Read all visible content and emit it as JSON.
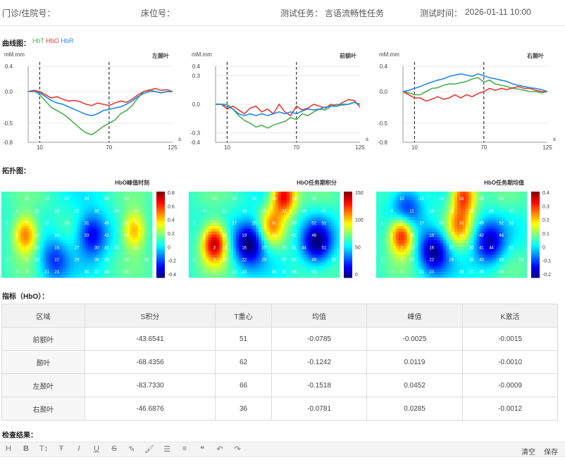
{
  "header": {
    "clinic_id_label": "门诊/住院号：",
    "bed_label": "床位号：",
    "task_label": "测试任务：",
    "task_value": "言语流畅性任务",
    "time_label": "测试时间：",
    "time_value": "2026-01-11 10:00"
  },
  "curves": {
    "section_title": "曲线图：",
    "legend": [
      {
        "name": "HbT",
        "color": "#4caf50"
      },
      {
        "name": "HbO",
        "color": "#e53935"
      },
      {
        "name": "HbR",
        "color": "#1e88e5"
      }
    ],
    "y_unit": "mM.mm",
    "x_unit": "s"
  },
  "chart_data": [
    {
      "type": "line",
      "title": "左颞叶",
      "ylabel": "mM.mm",
      "xlabel": "s",
      "ylim": [
        -0.8,
        0.4
      ],
      "yticks": [
        0.4,
        0.0,
        -0.5,
        -0.8
      ],
      "xticks": [
        10,
        70,
        125
      ],
      "xlim": [
        0,
        125
      ],
      "markers": [
        10,
        70
      ],
      "x": [
        0,
        5,
        10,
        15,
        20,
        25,
        30,
        35,
        40,
        45,
        50,
        55,
        60,
        65,
        70,
        75,
        80,
        85,
        90,
        95,
        100,
        105,
        110,
        115,
        120,
        125
      ],
      "series": [
        {
          "name": "HbT",
          "color": "#4caf50",
          "values": [
            0.0,
            0.02,
            -0.05,
            -0.15,
            -0.25,
            -0.3,
            -0.35,
            -0.42,
            -0.5,
            -0.58,
            -0.65,
            -0.68,
            -0.62,
            -0.55,
            -0.5,
            -0.45,
            -0.35,
            -0.3,
            -0.22,
            -0.1,
            0.0,
            0.03,
            0.0,
            -0.02,
            0.0,
            0.0
          ]
        },
        {
          "name": "HbO",
          "color": "#e53935",
          "values": [
            0.0,
            0.02,
            0.0,
            -0.05,
            -0.1,
            -0.08,
            -0.12,
            -0.15,
            -0.14,
            -0.16,
            -0.2,
            -0.22,
            -0.18,
            -0.2,
            -0.22,
            -0.18,
            -0.15,
            -0.17,
            -0.12,
            -0.05,
            0.0,
            0.02,
            0.05,
            0.02,
            0.03,
            0.0
          ]
        },
        {
          "name": "HbR",
          "color": "#1e88e5",
          "values": [
            0.0,
            0.0,
            -0.02,
            -0.08,
            -0.14,
            -0.18,
            -0.2,
            -0.24,
            -0.28,
            -0.32,
            -0.36,
            -0.38,
            -0.35,
            -0.3,
            -0.28,
            -0.26,
            -0.24,
            -0.2,
            -0.15,
            -0.08,
            -0.03,
            0.0,
            0.0,
            -0.02,
            0.0,
            0.0
          ]
        }
      ]
    },
    {
      "type": "line",
      "title": "前额叶",
      "ylabel": "mM.mm",
      "xlabel": "s",
      "ylim": [
        -0.4,
        0.4
      ],
      "yticks": [
        0.4,
        0.3,
        0.0,
        -0.3,
        -0.4
      ],
      "xticks": [
        10,
        70,
        125
      ],
      "xlim": [
        0,
        125
      ],
      "markers": [
        10,
        70
      ],
      "x": [
        0,
        5,
        10,
        15,
        20,
        25,
        30,
        35,
        40,
        45,
        50,
        55,
        60,
        65,
        70,
        75,
        80,
        85,
        90,
        95,
        100,
        105,
        110,
        115,
        120,
        125
      ],
      "series": [
        {
          "name": "HbT",
          "color": "#4caf50",
          "values": [
            0.0,
            0.0,
            0.0,
            -0.05,
            -0.12,
            -0.17,
            -0.2,
            -0.24,
            -0.22,
            -0.25,
            -0.22,
            -0.2,
            -0.18,
            -0.14,
            -0.16,
            -0.1,
            -0.12,
            -0.08,
            -0.05,
            -0.06,
            -0.02,
            0.0,
            -0.01,
            0.0,
            0.02,
            0.0
          ]
        },
        {
          "name": "HbO",
          "color": "#e53935",
          "values": [
            0.0,
            0.0,
            -0.05,
            -0.02,
            -0.06,
            -0.1,
            -0.04,
            -0.02,
            -0.08,
            -0.05,
            -0.1,
            0.0,
            -0.08,
            -0.12,
            -0.02,
            -0.06,
            -0.04,
            0.0,
            -0.02,
            -0.04,
            0.0,
            -0.02,
            0.02,
            0.05,
            0.04,
            -0.03
          ]
        },
        {
          "name": "HbR",
          "color": "#1e88e5",
          "values": [
            0.0,
            0.0,
            -0.02,
            -0.05,
            -0.1,
            -0.12,
            -0.1,
            -0.12,
            -0.1,
            -0.12,
            -0.1,
            -0.08,
            -0.1,
            -0.08,
            -0.1,
            -0.07,
            -0.05,
            -0.06,
            -0.05,
            -0.03,
            -0.02,
            -0.02,
            0.0,
            0.0,
            0.02,
            0.0
          ]
        }
      ]
    },
    {
      "type": "line",
      "title": "右颞叶",
      "ylabel": "mM.mm",
      "xlabel": "s",
      "ylim": [
        -0.8,
        0.4
      ],
      "yticks": [
        0.4,
        0.0,
        -0.5,
        -0.8
      ],
      "xticks": [
        10,
        70,
        125
      ],
      "xlim": [
        0,
        125
      ],
      "markers": [
        10,
        70
      ],
      "x": [
        0,
        5,
        10,
        15,
        20,
        25,
        30,
        35,
        40,
        45,
        50,
        55,
        60,
        65,
        70,
        75,
        80,
        85,
        90,
        95,
        100,
        105,
        110,
        115,
        120,
        125
      ],
      "series": [
        {
          "name": "HbT",
          "color": "#4caf50",
          "values": [
            0.0,
            -0.02,
            -0.05,
            -0.05,
            0.0,
            0.05,
            0.06,
            0.1,
            0.12,
            0.12,
            0.14,
            0.16,
            0.2,
            0.22,
            0.15,
            0.18,
            0.12,
            0.1,
            0.08,
            0.05,
            0.04,
            0.02,
            0.0,
            0.0,
            -0.02,
            0.0
          ]
        },
        {
          "name": "HbO",
          "color": "#e53935",
          "values": [
            0.0,
            -0.05,
            -0.1,
            -0.1,
            -0.15,
            -0.12,
            -0.08,
            -0.12,
            -0.1,
            -0.05,
            -0.1,
            -0.05,
            -0.08,
            -0.03,
            0.0,
            0.05,
            0.02,
            0.05,
            0.03,
            0.06,
            0.08,
            0.05,
            0.05,
            0.02,
            0.0,
            0.0
          ]
        },
        {
          "name": "HbR",
          "color": "#1e88e5",
          "values": [
            0.0,
            0.02,
            0.05,
            0.08,
            0.12,
            0.15,
            0.18,
            0.2,
            0.24,
            0.26,
            0.28,
            0.26,
            0.24,
            0.28,
            0.25,
            0.22,
            0.2,
            0.18,
            0.16,
            0.12,
            0.1,
            0.08,
            0.06,
            0.05,
            0.03,
            0.0
          ]
        }
      ]
    }
  ],
  "topo": {
    "section_title": "拓扑图：",
    "maps": [
      {
        "title": "HbO峰值时刻",
        "scale": [
          "0.8",
          "0.6",
          "0.4",
          "0.2",
          "0",
          "-0.2",
          "-0.4"
        ],
        "hot": [
          [
            0.16,
            0.5,
            0.7
          ],
          [
            0.88,
            0.45,
            0.6
          ]
        ],
        "cold": [
          [
            0.6,
            0.5,
            0.7
          ],
          [
            0.35,
            0.8,
            0.5
          ]
        ]
      },
      {
        "title": "HbO任务期积分",
        "scale": [
          "150",
          "100",
          "50",
          "0"
        ],
        "hot": [
          [
            0.17,
            0.6,
            1.0
          ],
          [
            0.63,
            0.05,
            0.9
          ],
          [
            0.55,
            0.4,
            0.5
          ]
        ],
        "cold": [
          [
            0.4,
            0.6,
            0.9
          ],
          [
            0.85,
            0.6,
            0.8
          ]
        ]
      },
      {
        "title": "HbO任务期均值",
        "scale": [
          "0.4",
          "0.3",
          "0.2",
          "0.1",
          "0",
          "-0.1",
          "-0.2"
        ],
        "hot": [
          [
            0.17,
            0.5,
            0.95
          ],
          [
            0.58,
            0.05,
            0.8
          ],
          [
            0.55,
            0.4,
            0.5
          ]
        ],
        "cold": [
          [
            0.2,
            0.2,
            0.6
          ],
          [
            0.38,
            0.7,
            0.8
          ],
          [
            0.75,
            0.6,
            0.7
          ]
        ]
      }
    ],
    "channels": [
      {
        "n": "10",
        "col": 2,
        "row": 0
      },
      {
        "n": "13",
        "col": 4,
        "row": 0
      },
      {
        "n": "24",
        "col": 6,
        "row": 0
      },
      {
        "n": "28",
        "col": 8,
        "row": 0
      },
      {
        "n": "38",
        "col": 10,
        "row": 0
      },
      {
        "n": "40",
        "col": 12,
        "row": 0
      },
      {
        "n": "4",
        "col": 1,
        "row": 1
      },
      {
        "n": "11",
        "col": 3,
        "row": 1
      },
      {
        "n": "18",
        "col": 5,
        "row": 1
      },
      {
        "n": "25",
        "col": 7,
        "row": 1
      },
      {
        "n": "32",
        "col": 9,
        "row": 1
      },
      {
        "n": "39",
        "col": 11,
        "row": 1
      },
      {
        "n": "47",
        "col": 13,
        "row": 1
      },
      {
        "n": "1",
        "col": 0,
        "row": 2
      },
      {
        "n": "5",
        "col": 2,
        "row": 2
      },
      {
        "n": "17",
        "col": 4,
        "row": 2
      },
      {
        "n": "20",
        "col": 6,
        "row": 2
      },
      {
        "n": "31",
        "col": 8,
        "row": 2
      },
      {
        "n": "45",
        "col": 10,
        "row": 2
      },
      {
        "n": "52",
        "col": 12,
        "row": 2
      },
      {
        "n": "51",
        "col": 13,
        "row": 2
      },
      {
        "n": "6",
        "col": 1,
        "row": 3
      },
      {
        "n": "14",
        "col": 3,
        "row": 3
      },
      {
        "n": "19",
        "col": 5,
        "row": 3
      },
      {
        "n": "33",
        "col": 8,
        "row": 3
      },
      {
        "n": "42",
        "col": 10,
        "row": 3
      },
      {
        "n": "46",
        "col": 12,
        "row": 3
      },
      {
        "n": "3",
        "col": 2,
        "row": 4
      },
      {
        "n": "13",
        "col": 3,
        "row": 4
      },
      {
        "n": "16",
        "col": 5,
        "row": 4
      },
      {
        "n": "27",
        "col": 7,
        "row": 4
      },
      {
        "n": "30",
        "col": 9,
        "row": 4
      },
      {
        "n": "41",
        "col": 10,
        "row": 4
      },
      {
        "n": "44",
        "col": 11,
        "row": 4
      },
      {
        "n": "51",
        "col": 13,
        "row": 4
      },
      {
        "n": "2",
        "col": 0,
        "row": 5
      },
      {
        "n": "8",
        "col": 2,
        "row": 5
      },
      {
        "n": "15",
        "col": 3,
        "row": 5
      },
      {
        "n": "22",
        "col": 5,
        "row": 5
      },
      {
        "n": "29",
        "col": 7,
        "row": 5
      },
      {
        "n": "36",
        "col": 9,
        "row": 5
      },
      {
        "n": "43",
        "col": 10,
        "row": 5
      },
      {
        "n": "49",
        "col": 12,
        "row": 5
      },
      {
        "n": "53",
        "col": 14,
        "row": 5
      },
      {
        "n": "7",
        "col": 1,
        "row": 6
      },
      {
        "n": "9",
        "col": 2,
        "row": 6
      },
      {
        "n": "21",
        "col": 4,
        "row": 6
      },
      {
        "n": "23",
        "col": 5,
        "row": 6
      },
      {
        "n": "35",
        "col": 8,
        "row": 6
      },
      {
        "n": "37",
        "col": 9,
        "row": 6
      },
      {
        "n": "48",
        "col": 10,
        "row": 6
      },
      {
        "n": "50",
        "col": 12,
        "row": 6
      }
    ]
  },
  "metrics": {
    "section_title": "指标（HbO）：",
    "columns": [
      "区域",
      "S积分",
      "T重心",
      "均值",
      "峰值",
      "K激活"
    ],
    "rows": [
      [
        "前额叶",
        "-43.6541",
        "51",
        "-0.0785",
        "-0.0025",
        "-0.0015"
      ],
      [
        "颞叶",
        "-68.4356",
        "62",
        "-0.1242",
        "0.0119",
        "-0.0010"
      ],
      [
        "左颞叶",
        "-83.7330",
        "66",
        "-0.1518",
        "0.0452",
        "-0.0009"
      ],
      [
        "右颞叶",
        "-46.6876",
        "36",
        "-0.0781",
        "0.0285",
        "-0.0012"
      ]
    ]
  },
  "result": {
    "section_title": "检查结果：",
    "toolbar": [
      {
        "name": "heading-icon",
        "glyph": "H"
      },
      {
        "name": "bold-icon",
        "glyph": "B"
      },
      {
        "name": "text-size-icon",
        "glyph": "T↕"
      },
      {
        "name": "font-icon",
        "glyph": "Ŧ"
      },
      {
        "name": "italic-icon",
        "glyph": "I"
      },
      {
        "name": "underline-icon",
        "glyph": "U"
      },
      {
        "name": "strikethrough-icon",
        "glyph": "S"
      },
      {
        "name": "highlight-icon",
        "glyph": "✎"
      },
      {
        "name": "brush-icon",
        "glyph": "🖌"
      },
      {
        "name": "bullet-list-icon",
        "glyph": "☰"
      },
      {
        "name": "align-icon",
        "glyph": "≡"
      },
      {
        "name": "quote-icon",
        "glyph": "❝"
      },
      {
        "name": "undo-icon",
        "glyph": "↶"
      },
      {
        "name": "redo-icon",
        "glyph": "↷"
      }
    ],
    "clear_label": "清空",
    "save_label": "保存"
  }
}
